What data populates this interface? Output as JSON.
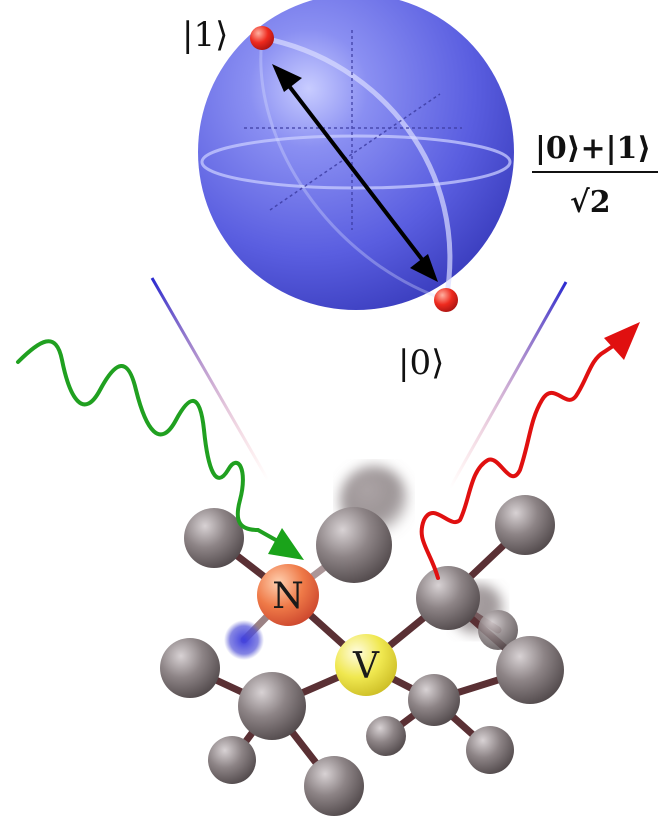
{
  "bloch": {
    "top_ket": "|1⟩",
    "bottom_ket": "|0⟩",
    "superposition_numerator": "|0⟩+|1⟩",
    "superposition_denominator": "√2"
  },
  "atoms": {
    "nitrogen_label": "N",
    "vacancy_label": "V"
  },
  "colors": {
    "sphere": "#5a5ee0",
    "sphere_light": "#9fa6ff",
    "state_point": "#e0201a",
    "excitation_wave": "#20a020",
    "emission_wave": "#e01010",
    "nitrogen": "#e86a3a",
    "vacancy": "#e8e040",
    "carbon": "#6a6062",
    "bond": "#5a3034",
    "small_atom": "#3a3ad0",
    "cone_line": "#3a3ad0"
  },
  "icons": {
    "state_arrow": "double-headed-arrow-icon",
    "excitation_arrow": "green-arrowhead-icon",
    "emission_arrow": "red-arrowhead-icon"
  }
}
